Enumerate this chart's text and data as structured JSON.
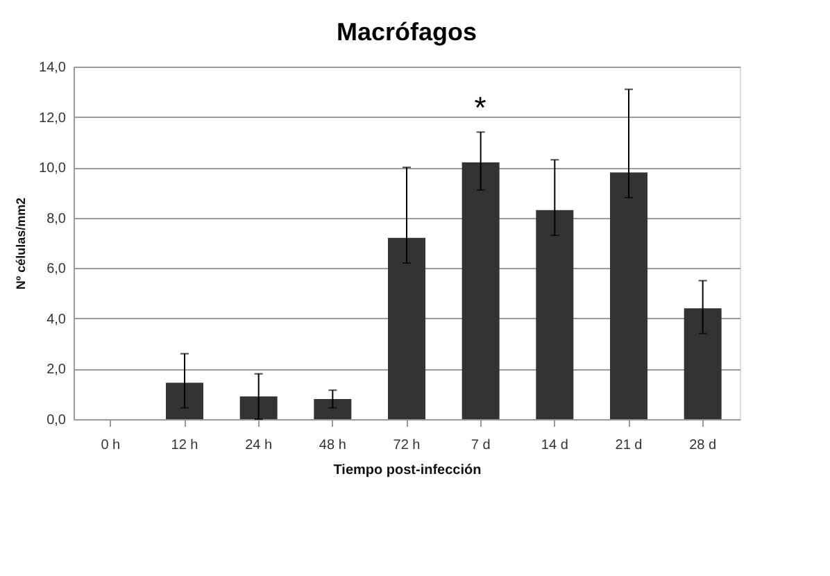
{
  "chart_data": {
    "type": "bar",
    "title": "Macrófagos",
    "xlabel": "Tiempo post-infección",
    "ylabel": "Nº células/mm2",
    "categories": [
      "0 h",
      "12 h",
      "24 h",
      "48 h",
      "72 h",
      "7 d",
      "14 d",
      "21 d",
      "28 d"
    ],
    "values": [
      0,
      1.45,
      0.9,
      0.8,
      7.2,
      10.2,
      8.3,
      9.8,
      4.4
    ],
    "errors": [
      null,
      [
        0.45,
        2.6
      ],
      [
        0.0,
        1.8
      ],
      [
        0.45,
        1.15
      ],
      [
        6.2,
        10.0
      ],
      [
        9.1,
        11.4
      ],
      [
        7.3,
        10.3
      ],
      [
        8.8,
        13.1
      ],
      [
        3.4,
        5.5
      ]
    ],
    "color": "#333333",
    "ylim": [
      0,
      14
    ],
    "yticks": [
      {
        "value": 0,
        "label": "0,0"
      },
      {
        "value": 2,
        "label": "2,0"
      },
      {
        "value": 4,
        "label": "4,0"
      },
      {
        "value": 6,
        "label": "6,0"
      },
      {
        "value": 8,
        "label": "8,0"
      },
      {
        "value": 10,
        "label": "10,0"
      },
      {
        "value": 12,
        "label": "12,0"
      },
      {
        "value": 14,
        "label": "14,0"
      }
    ],
    "grid": "y",
    "annotations": [
      "*"
    ]
  }
}
